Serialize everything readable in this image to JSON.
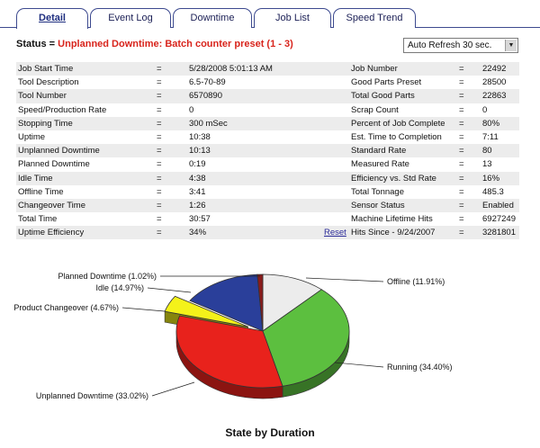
{
  "tabs": [
    {
      "label": "Detail",
      "active": true
    },
    {
      "label": "Event Log",
      "active": false
    },
    {
      "label": "Downtime",
      "active": false
    },
    {
      "label": "Job List",
      "active": false
    },
    {
      "label": "Speed Trend",
      "active": false
    }
  ],
  "status": {
    "label": "Status =",
    "message": "Unplanned Downtime:  Batch counter preset (1 - 3)"
  },
  "refresh": {
    "selected": "Auto Refresh 30 sec.",
    "icon": "chevron-down-icon"
  },
  "equals": "=",
  "reset_link": "Reset",
  "rows": [
    {
      "l1": "Job Start Time",
      "v1": "5/28/2008 5:01:13 AM",
      "l2": "Job Number",
      "v2": "22492"
    },
    {
      "l1": "Tool Description",
      "v1": "6.5-70-89",
      "l2": "Good Parts Preset",
      "v2": "28500"
    },
    {
      "l1": "Tool Number",
      "v1": "6570890",
      "l2": "Total Good Parts",
      "v2": "22863"
    },
    {
      "l1": "Speed/Production Rate",
      "v1": "0",
      "l2": "Scrap Count",
      "v2": "0"
    },
    {
      "l1": "Stopping Time",
      "v1": "300 mSec",
      "l2": "Percent of Job Complete",
      "v2": "80%"
    },
    {
      "l1": "Uptime",
      "v1": "10:38",
      "l2": "Est. Time to Completion",
      "v2": "7:11"
    },
    {
      "l1": "Unplanned Downtime",
      "v1": "10:13",
      "l2": "Standard Rate",
      "v2": "80"
    },
    {
      "l1": "Planned Downtime",
      "v1": "0:19",
      "l2": "Measured Rate",
      "v2": "13"
    },
    {
      "l1": "Idle Time",
      "v1": "4:38",
      "l2": "Efficiency vs. Std Rate",
      "v2": "16%"
    },
    {
      "l1": "Offline Time",
      "v1": "3:41",
      "l2": "Total Tonnage",
      "v2": "485.3"
    },
    {
      "l1": "Changeover Time",
      "v1": "1:26",
      "l2": "Sensor Status",
      "v2": "Enabled"
    },
    {
      "l1": "Total Time",
      "v1": "30:57",
      "l2": "Machine Lifetime Hits",
      "v2": "6927249"
    },
    {
      "l1": "Uptime Efficiency",
      "v1": "34%",
      "l2": "Hits Since - 9/24/2007",
      "v2": "3281801"
    }
  ],
  "chart_data": {
    "type": "pie",
    "title": "State by Duration",
    "series": [
      {
        "label": "Offline (11.91%)",
        "value": 11.91,
        "color": "#ececec"
      },
      {
        "label": "Running (34.40%)",
        "value": 34.4,
        "color": "#5cbf3f"
      },
      {
        "label": "Unplanned Downtime (33.02%)",
        "value": 33.02,
        "color": "#e8221c"
      },
      {
        "label": "Product Changeover (4.67%)",
        "value": 4.67,
        "color": "#f4f21a",
        "exploded": true
      },
      {
        "label": "Idle (14.97%)",
        "value": 14.97,
        "color": "#2a3f9a"
      },
      {
        "label": "Planned Downtime (1.02%)",
        "value": 1.02,
        "color": "#8a1c1c"
      }
    ]
  }
}
